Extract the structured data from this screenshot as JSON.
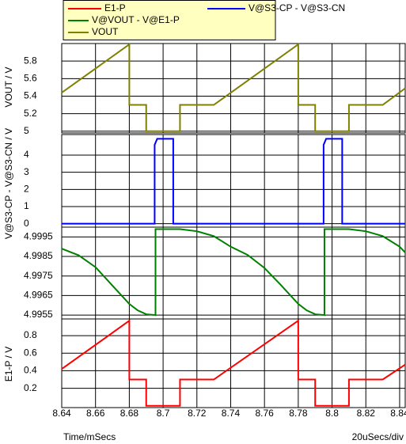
{
  "chart_data": [
    {
      "type": "line",
      "ylabel": "VOUT / V",
      "x": [
        8.64,
        8.68,
        8.68,
        8.69,
        8.69,
        8.71,
        8.71,
        8.73,
        8.78,
        8.78,
        8.79,
        8.79,
        8.81,
        8.81,
        8.83,
        8.8433
      ],
      "series": [
        {
          "name": "VOUT",
          "color": "#808000",
          "values": [
            5.44,
            5.99,
            5.3,
            5.3,
            5.0,
            5.0,
            5.3,
            5.3,
            5.99,
            5.3,
            5.3,
            5.0,
            5.0,
            5.3,
            5.3,
            5.49
          ]
        }
      ],
      "xlim": [
        8.64,
        8.8433
      ],
      "xticks": [
        8.64,
        8.66,
        8.68,
        8.7,
        8.72,
        8.74,
        8.76,
        8.78,
        8.8,
        8.82,
        8.84
      ],
      "ylim": [
        4.98,
        6.0
      ],
      "yticks": [
        5,
        5.2,
        5.4,
        5.6,
        5.8
      ],
      "grid": true
    },
    {
      "type": "line",
      "ylabel": "V@S3-CP - V@S3-CN / V",
      "x": [
        8.64,
        8.695,
        8.695,
        8.6965,
        8.706,
        8.706,
        8.795,
        8.795,
        8.7965,
        8.806,
        8.806,
        8.8433
      ],
      "series": [
        {
          "name": "V@S3-CP - V@S3-CN",
          "color": "#0000ff",
          "values": [
            0,
            0,
            4.6,
            4.95,
            4.95,
            0,
            0,
            4.6,
            4.95,
            4.95,
            0,
            0
          ]
        }
      ],
      "xlim": [
        8.64,
        8.8433
      ],
      "xticks": [
        8.64,
        8.66,
        8.68,
        8.7,
        8.72,
        8.74,
        8.76,
        8.78,
        8.8,
        8.82,
        8.84
      ],
      "ylim": [
        -0.2,
        5.2
      ],
      "yticks": [
        0,
        1,
        2,
        3,
        4
      ],
      "grid": true
    },
    {
      "type": "line",
      "x": [
        8.64,
        8.65,
        8.66,
        8.67,
        8.68,
        8.685,
        8.69,
        8.6955,
        8.6955,
        8.71,
        8.72,
        8.73,
        8.74,
        8.75,
        8.76,
        8.77,
        8.78,
        8.785,
        8.79,
        8.7955,
        8.7955,
        8.81,
        8.82,
        8.83,
        8.84,
        8.8433
      ],
      "series": [
        {
          "name": "V@VOUT - V@E1-P",
          "color": "#008000",
          "values": [
            4.9989,
            4.99856,
            4.99795,
            4.99701,
            4.99607,
            4.99574,
            4.99554,
            4.9955,
            4.9999,
            4.9999,
            4.99979,
            4.99954,
            4.999,
            4.99858,
            4.99791,
            4.99701,
            4.99607,
            4.99574,
            4.99554,
            4.9955,
            4.9999,
            4.9999,
            4.99979,
            4.99954,
            4.999,
            4.9987
          ]
        }
      ],
      "xlim": [
        8.64,
        8.8433
      ],
      "xticks": [
        8.64,
        8.66,
        8.68,
        8.7,
        8.72,
        8.74,
        8.76,
        8.78,
        8.8,
        8.82,
        8.84
      ],
      "ylim": [
        4.9953,
        5.0
      ],
      "yticks": [
        4.9955,
        4.9965,
        4.9975,
        4.9985,
        4.9995
      ],
      "grid": true
    },
    {
      "type": "line",
      "ylabel": "E1-P / V",
      "xlabel": "Time/mSecs",
      "annotation": "20uSecs/div",
      "x": [
        8.64,
        8.68,
        8.68,
        8.69,
        8.69,
        8.71,
        8.71,
        8.73,
        8.78,
        8.78,
        8.79,
        8.79,
        8.81,
        8.81,
        8.83,
        8.8433
      ],
      "series": [
        {
          "name": "E1-P",
          "color": "#ff0000",
          "values": [
            0.42,
            0.97,
            0.3,
            0.3,
            0,
            0,
            0.3,
            0.3,
            0.97,
            0.3,
            0.3,
            0,
            0,
            0.3,
            0.3,
            0.47
          ]
        }
      ],
      "xlim": [
        8.64,
        8.8433
      ],
      "xticks": [
        8.64,
        8.66,
        8.68,
        8.7,
        8.72,
        8.74,
        8.76,
        8.78,
        8.8,
        8.82,
        8.84
      ],
      "ylim": [
        -0.02,
        0.99
      ],
      "yticks": [
        0.2,
        0.4,
        0.6,
        0.8
      ],
      "grid": true
    }
  ]
}
